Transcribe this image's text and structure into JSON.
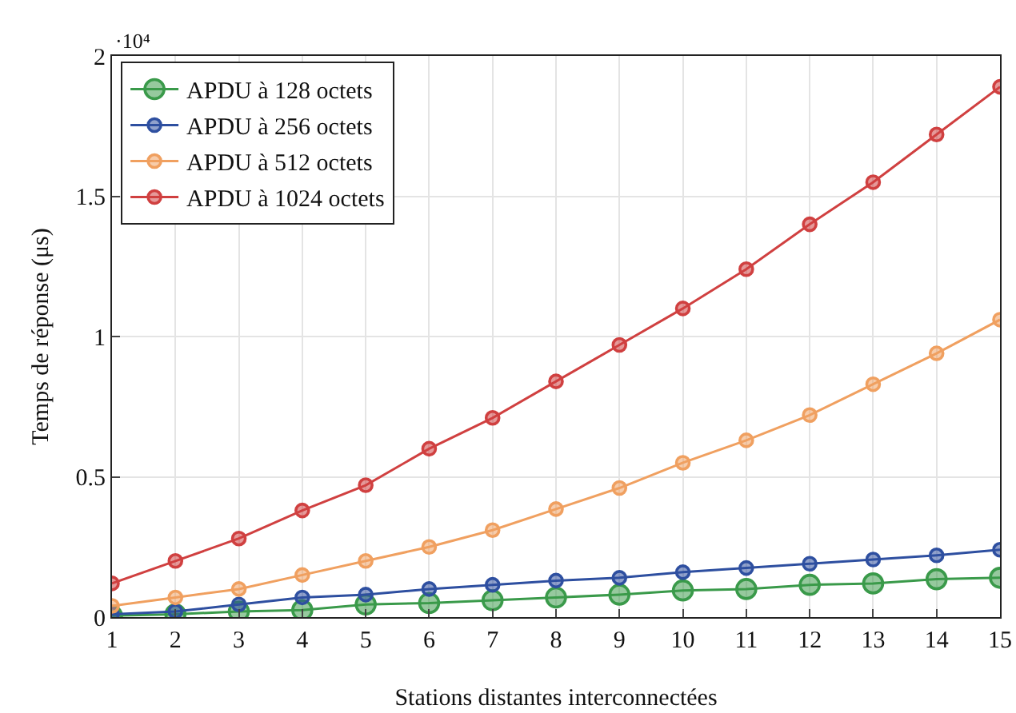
{
  "chart_data": {
    "type": "line",
    "xlabel": "Stations distantes interconnectées",
    "ylabel": "Temps de réponse (μs)",
    "annotations": [
      "·10⁴"
    ],
    "x": [
      1,
      2,
      3,
      4,
      5,
      6,
      7,
      8,
      9,
      10,
      11,
      12,
      13,
      14,
      15
    ],
    "series": [
      {
        "name": "APDU à 128 octets",
        "color": "#3a9a4a",
        "values": [
          0.005,
          0.01,
          0.02,
          0.025,
          0.045,
          0.05,
          0.06,
          0.07,
          0.08,
          0.095,
          0.1,
          0.115,
          0.12,
          0.135,
          0.14
        ]
      },
      {
        "name": "APDU à 256 octets",
        "color": "#2e4fa0",
        "values": [
          0.01,
          0.02,
          0.045,
          0.07,
          0.08,
          0.1,
          0.115,
          0.13,
          0.14,
          0.16,
          0.175,
          0.19,
          0.205,
          0.22,
          0.24
        ]
      },
      {
        "name": "APDU à 512 octets",
        "color": "#f0a060",
        "values": [
          0.04,
          0.07,
          0.1,
          0.15,
          0.2,
          0.25,
          0.31,
          0.385,
          0.46,
          0.55,
          0.63,
          0.72,
          0.83,
          0.94,
          1.06
        ]
      },
      {
        "name": "APDU à 1024 octets",
        "color": "#d04040",
        "values": [
          0.12,
          0.2,
          0.28,
          0.38,
          0.47,
          0.6,
          0.71,
          0.84,
          0.97,
          1.1,
          1.24,
          1.4,
          1.55,
          1.72,
          1.89
        ]
      }
    ],
    "xlim": [
      1,
      15
    ],
    "xticks": [
      1,
      2,
      3,
      4,
      5,
      6,
      7,
      8,
      9,
      10,
      11,
      12,
      13,
      14,
      15
    ],
    "ylim": [
      0,
      2
    ],
    "yticks": [
      0,
      0.5,
      1,
      1.5,
      2
    ],
    "grid": true,
    "legend": "top left",
    "marker": "circle",
    "line_style": "solid"
  }
}
